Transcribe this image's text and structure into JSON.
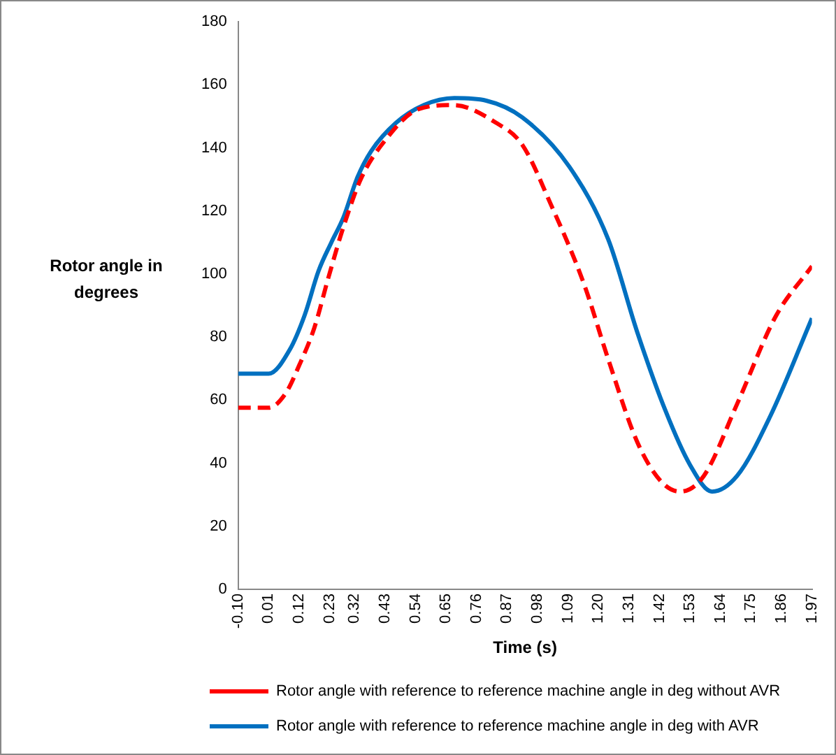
{
  "chart_data": {
    "type": "line",
    "xlabel": "Time (s)",
    "ylabel": "Rotor angle in degrees",
    "xlim": [
      -0.1,
      1.97
    ],
    "xticks": [
      {
        "value": -0.1,
        "label": "-0.10"
      },
      0.01,
      0.12,
      0.23,
      0.32,
      0.43,
      0.54,
      0.65,
      0.76,
      0.87,
      0.98,
      1.09,
      {
        "value": 1.2,
        "label": "1.20"
      },
      1.31,
      1.42,
      1.53,
      1.64,
      1.75,
      1.86,
      1.97
    ],
    "ylim": [
      0,
      180
    ],
    "yticks": [
      0,
      20,
      40,
      60,
      80,
      100,
      120,
      140,
      160,
      180
    ],
    "grid": false,
    "legend": "bottom",
    "marker": "none",
    "series": [
      {
        "name": "Rotor angle with reference to reference machine angle in deg without AVR",
        "color": "#ff0000",
        "line_style": "dashed",
        "x": [
          -0.1,
          0.01,
          0.07,
          0.12,
          0.175,
          0.226,
          0.28,
          0.345,
          0.433,
          0.55,
          0.676,
          0.83,
          0.925,
          1.03,
          1.147,
          1.235,
          1.34,
          1.425,
          1.494,
          1.58,
          1.7,
          1.84,
          1.97
        ],
        "values": [
          57.6,
          57.6,
          62,
          71,
          83,
          99,
          115,
          130.6,
          142.7,
          152.3,
          153.6,
          148,
          141,
          121.7,
          97,
          73,
          46.7,
          34.3,
          31,
          36,
          58.8,
          86.7,
          102.5
        ]
      },
      {
        "name": "Rotor angle with reference to reference machine angle in deg with AVR",
        "color": "#0070c0",
        "line_style": "solid",
        "x": [
          -0.1,
          0.01,
          0.086,
          0.14,
          0.19,
          0.236,
          0.28,
          0.33,
          0.38,
          0.47,
          0.57,
          0.68,
          0.795,
          0.925,
          1.095,
          1.235,
          1.34,
          1.44,
          1.53,
          1.61,
          1.7,
          1.82,
          1.97
        ],
        "values": [
          68.4,
          68.4,
          76,
          87,
          101,
          110,
          118,
          130.6,
          139,
          148,
          153.6,
          155.8,
          155,
          149.7,
          134,
          111,
          81.5,
          57,
          39.5,
          31,
          36,
          55,
          86
        ]
      }
    ]
  }
}
